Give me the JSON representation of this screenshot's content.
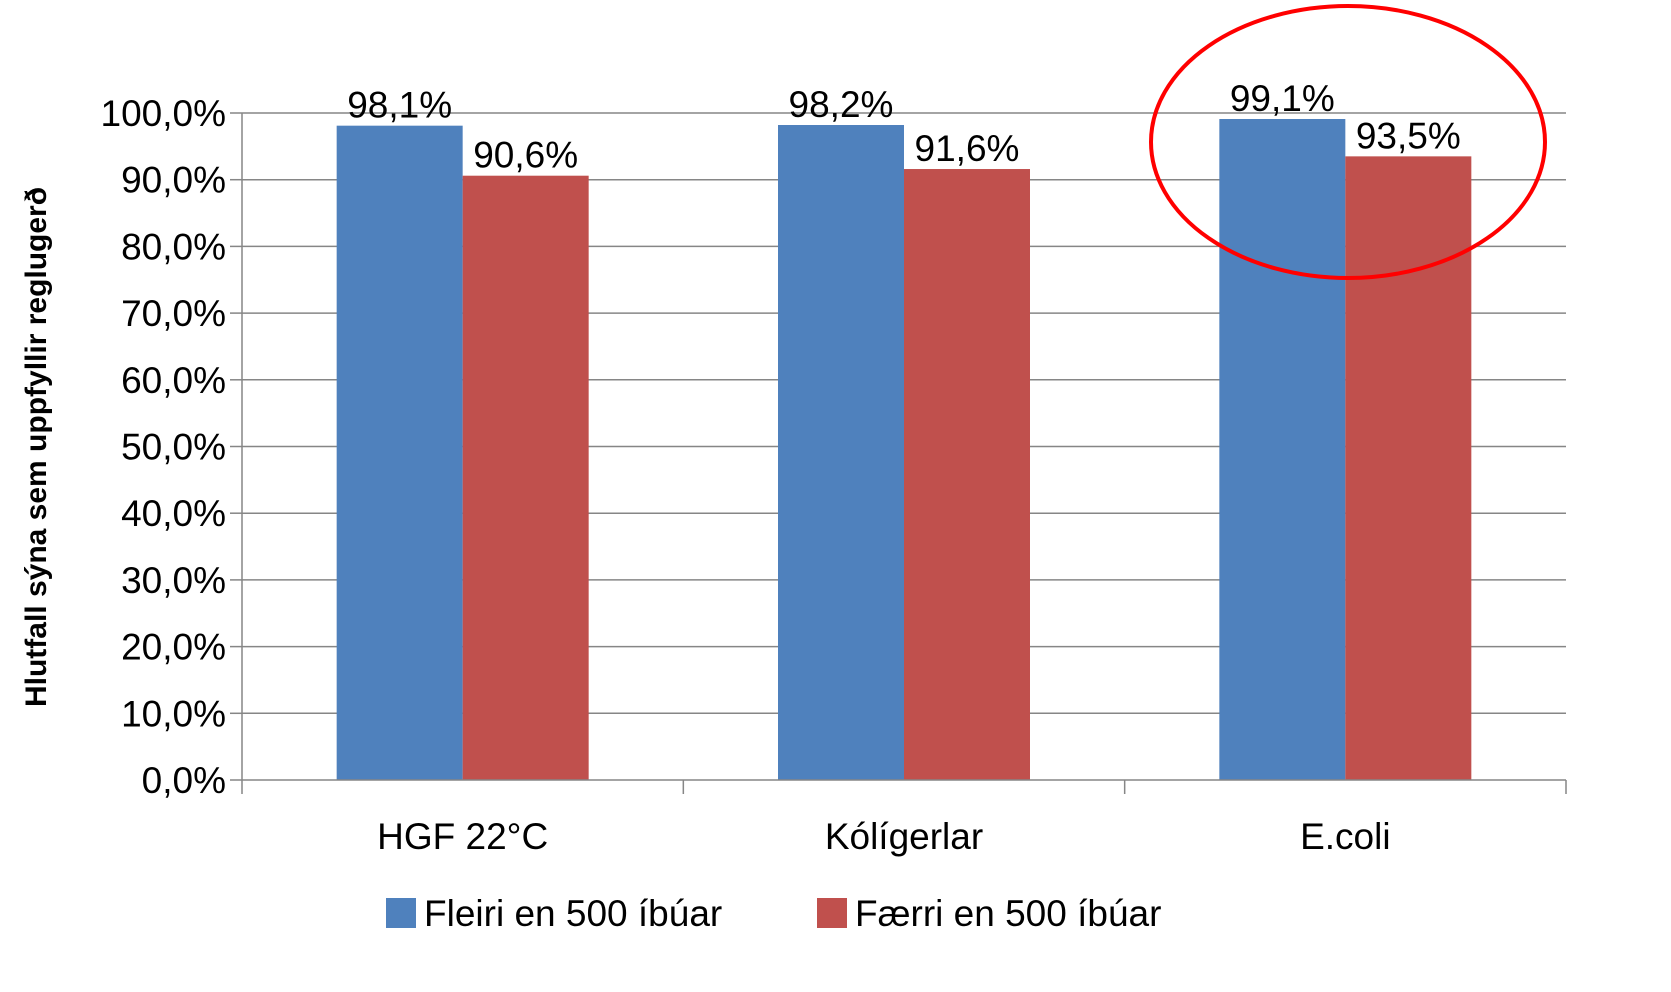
{
  "chart_data": {
    "type": "bar",
    "categories": [
      "HGF 22°C",
      "Kólígerlar",
      "E.coli"
    ],
    "series": [
      {
        "name": "Fleiri en 500 íbúar",
        "values": [
          98.1,
          98.2,
          99.1
        ],
        "labels": [
          "98,1%",
          "98,2%",
          "99,1%"
        ],
        "color": "#4F81BD"
      },
      {
        "name": "Færri en 500 íbúar",
        "values": [
          90.6,
          91.6,
          93.5
        ],
        "labels": [
          "90,6%",
          "91,6%",
          "93,5%"
        ],
        "color": "#C0504D"
      }
    ],
    "ylabel": "Hlutfall sýna sem uppfyllir reglugerð",
    "xlabel": "",
    "ylim": [
      0,
      100
    ],
    "yticks": [
      "0,0%",
      "10,0%",
      "20,0%",
      "30,0%",
      "40,0%",
      "50,0%",
      "60,0%",
      "70,0%",
      "80,0%",
      "90,0%",
      "100,0%"
    ],
    "grid": true,
    "legend_position": "bottom",
    "highlight": {
      "category": "E.coli",
      "shape": "ellipse",
      "color": "#FF0000"
    }
  }
}
